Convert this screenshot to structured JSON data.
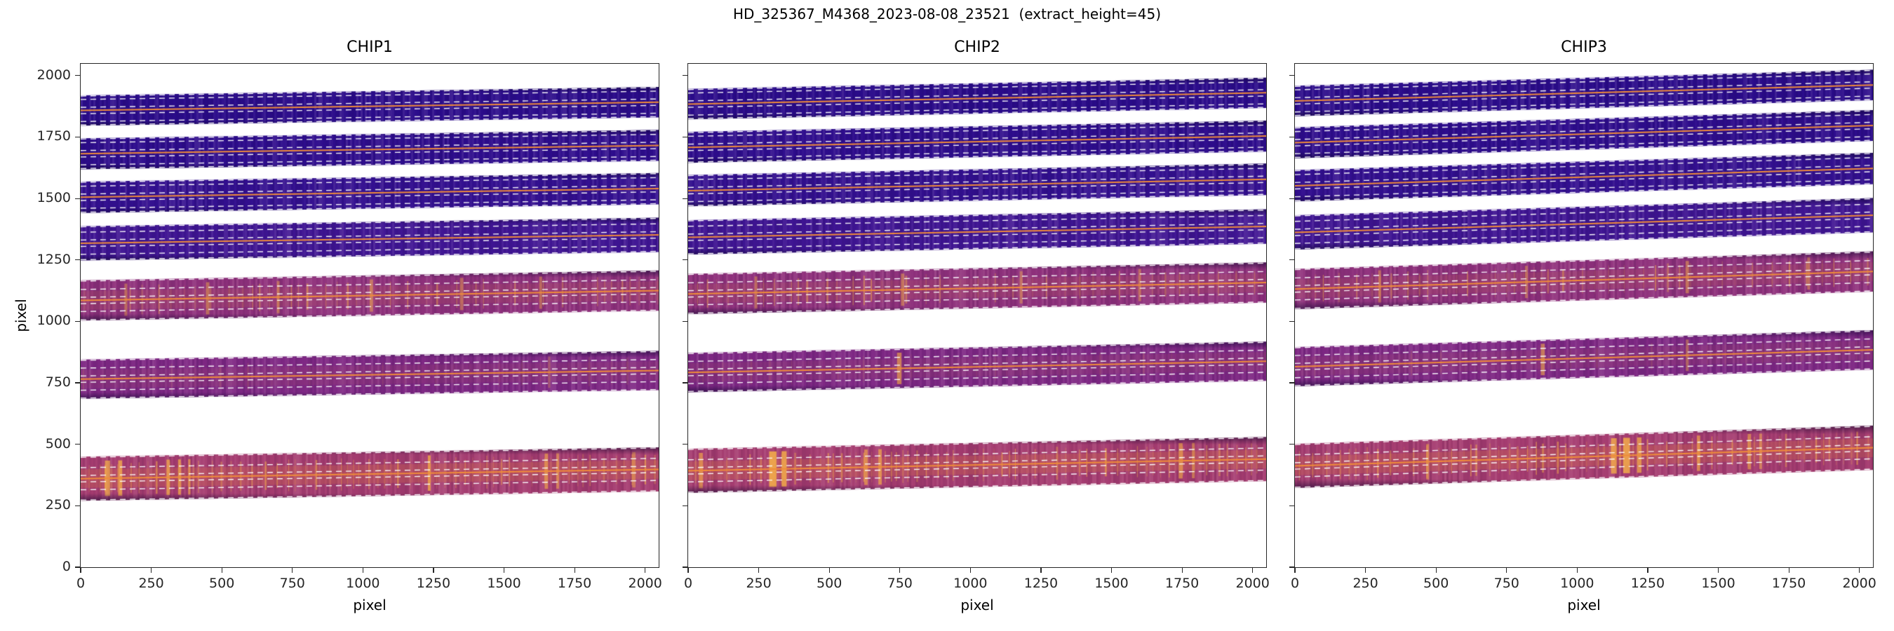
{
  "chart_data": {
    "type": "heatmap",
    "title": "HD_325367_M4368_2023-08-08_23521  (extract_height=45)",
    "extract_height": 45,
    "xlabel": "pixel",
    "ylabel": "pixel",
    "xlim": [
      0,
      2048
    ],
    "ylim": [
      0,
      2048
    ],
    "x_ticks": [
      0,
      250,
      500,
      750,
      1000,
      1250,
      1500,
      1750,
      2000
    ],
    "y_ticks": [
      0,
      250,
      500,
      750,
      1000,
      1250,
      1500,
      1750,
      2000
    ],
    "legend": "none",
    "grid": false,
    "style": {
      "trace_color": "#f08c3a",
      "dash_color": "#ffffff",
      "bright_line_color": "#f2ab4a",
      "tint_color": "#d2694a",
      "spine_color": "#262626",
      "background": "#ffffff"
    },
    "panels": [
      {
        "title": "CHIP1",
        "orders": [
          {
            "y_left": 360,
            "y_right": 398,
            "half_height": 90,
            "color": "#a53c70",
            "line_spacing": 34,
            "line_alpha": 0.6,
            "tint_alpha": 0.32,
            "bright_lines": [
              [
                95,
                18,
                0.75
              ],
              [
                140,
                14,
                0.8
              ],
              [
                310,
                12,
                0.75
              ],
              [
                350,
                10,
                0.75
              ],
              [
                385,
                8,
                0.65
              ],
              [
                1235,
                10,
                0.8
              ],
              [
                1650,
                12,
                0.65
              ],
              [
                1690,
                10,
                0.55
              ],
              [
                1960,
                12,
                0.5
              ]
            ]
          },
          {
            "y_left": 765,
            "y_right": 800,
            "half_height": 80,
            "color": "#7e2884",
            "line_spacing": 70,
            "line_alpha": 0.14,
            "tint_alpha": 0.1,
            "bright_lines": [
              [
                1660,
                8,
                0.3
              ]
            ]
          },
          {
            "y_left": 1085,
            "y_right": 1125,
            "half_height": 82,
            "color": "#8f317c",
            "line_spacing": 48,
            "line_alpha": 0.5,
            "tint_alpha": 0.15,
            "bright_lines": [
              [
                160,
                10,
                0.45
              ],
              [
                450,
                12,
                0.5
              ],
              [
                700,
                10,
                0.45
              ],
              [
                1030,
                12,
                0.5
              ],
              [
                1350,
                12,
                0.45
              ],
              [
                1630,
                10,
                0.45
              ]
            ]
          },
          {
            "y_left": 1318,
            "y_right": 1352,
            "half_height": 70,
            "color": "#3f1593",
            "line_spacing": 0,
            "line_alpha": 0,
            "tint_alpha": 0,
            "bright_lines": []
          },
          {
            "y_left": 1505,
            "y_right": 1540,
            "half_height": 64,
            "color": "#331090",
            "line_spacing": 0,
            "line_alpha": 0,
            "tint_alpha": 0,
            "bright_lines": []
          },
          {
            "y_left": 1682,
            "y_right": 1716,
            "half_height": 63,
            "color": "#2e0d8d",
            "line_spacing": 0,
            "line_alpha": 0,
            "tint_alpha": 0,
            "bright_lines": []
          },
          {
            "y_left": 1858,
            "y_right": 1892,
            "half_height": 62,
            "color": "#2b0c8b",
            "line_spacing": 0,
            "line_alpha": 0,
            "tint_alpha": 0,
            "bright_lines": []
          }
        ]
      },
      {
        "title": "CHIP2",
        "orders": [
          {
            "y_left": 392,
            "y_right": 440,
            "half_height": 90,
            "color": "#a53c70",
            "line_spacing": 34,
            "line_alpha": 0.6,
            "tint_alpha": 0.32,
            "bright_lines": [
              [
                45,
                14,
                0.65
              ],
              [
                300,
                26,
                0.9
              ],
              [
                340,
                18,
                0.85
              ],
              [
                630,
                12,
                0.65
              ],
              [
                680,
                12,
                0.7
              ],
              [
                1745,
                14,
                0.65
              ],
              [
                1790,
                10,
                0.55
              ]
            ]
          },
          {
            "y_left": 792,
            "y_right": 838,
            "half_height": 80,
            "color": "#7e2884",
            "line_spacing": 70,
            "line_alpha": 0.14,
            "tint_alpha": 0.1,
            "bright_lines": [
              [
                748,
                16,
                0.65
              ]
            ]
          },
          {
            "y_left": 1112,
            "y_right": 1158,
            "half_height": 82,
            "color": "#8f317c",
            "line_spacing": 48,
            "line_alpha": 0.5,
            "tint_alpha": 0.15,
            "bright_lines": [
              [
                240,
                10,
                0.45
              ],
              [
                760,
                12,
                0.5
              ],
              [
                1180,
                10,
                0.45
              ],
              [
                1600,
                10,
                0.45
              ]
            ]
          },
          {
            "y_left": 1342,
            "y_right": 1386,
            "half_height": 70,
            "color": "#3f1593",
            "line_spacing": 0,
            "line_alpha": 0,
            "tint_alpha": 0,
            "bright_lines": []
          },
          {
            "y_left": 1532,
            "y_right": 1578,
            "half_height": 64,
            "color": "#331090",
            "line_spacing": 0,
            "line_alpha": 0,
            "tint_alpha": 0,
            "bright_lines": []
          },
          {
            "y_left": 1708,
            "y_right": 1754,
            "half_height": 63,
            "color": "#2e0d8d",
            "line_spacing": 0,
            "line_alpha": 0,
            "tint_alpha": 0,
            "bright_lines": []
          },
          {
            "y_left": 1884,
            "y_right": 1930,
            "half_height": 62,
            "color": "#2b0c8b",
            "line_spacing": 0,
            "line_alpha": 0,
            "tint_alpha": 0,
            "bright_lines": []
          }
        ]
      },
      {
        "title": "CHIP3",
        "orders": [
          {
            "y_left": 412,
            "y_right": 486,
            "half_height": 90,
            "color": "#a53c70",
            "line_spacing": 36,
            "line_alpha": 0.6,
            "tint_alpha": 0.32,
            "bright_lines": [
              [
                470,
                10,
                0.55
              ],
              [
                1130,
                20,
                0.8
              ],
              [
                1175,
                24,
                0.85
              ],
              [
                1220,
                16,
                0.75
              ],
              [
                1430,
                12,
                0.65
              ],
              [
                1610,
                12,
                0.6
              ],
              [
                1650,
                10,
                0.55
              ]
            ]
          },
          {
            "y_left": 816,
            "y_right": 884,
            "half_height": 80,
            "color": "#7e2884",
            "line_spacing": 70,
            "line_alpha": 0.14,
            "tint_alpha": 0.1,
            "bright_lines": [
              [
                878,
                14,
                0.6
              ],
              [
                1390,
                10,
                0.45
              ]
            ]
          },
          {
            "y_left": 1132,
            "y_right": 1203,
            "half_height": 82,
            "color": "#8f317c",
            "line_spacing": 48,
            "line_alpha": 0.5,
            "tint_alpha": 0.15,
            "bright_lines": [
              [
                300,
                10,
                0.45
              ],
              [
                820,
                10,
                0.45
              ],
              [
                1390,
                12,
                0.5
              ],
              [
                1820,
                10,
                0.45
              ]
            ]
          },
          {
            "y_left": 1362,
            "y_right": 1432,
            "half_height": 70,
            "color": "#3f1593",
            "line_spacing": 0,
            "line_alpha": 0,
            "tint_alpha": 0,
            "bright_lines": []
          },
          {
            "y_left": 1552,
            "y_right": 1622,
            "half_height": 64,
            "color": "#331090",
            "line_spacing": 0,
            "line_alpha": 0,
            "tint_alpha": 0,
            "bright_lines": []
          },
          {
            "y_left": 1727,
            "y_right": 1797,
            "half_height": 63,
            "color": "#2e0d8d",
            "line_spacing": 0,
            "line_alpha": 0,
            "tint_alpha": 0,
            "bright_lines": []
          },
          {
            "y_left": 1897,
            "y_right": 1962,
            "half_height": 62,
            "color": "#2b0c8b",
            "line_spacing": 0,
            "line_alpha": 0,
            "tint_alpha": 0,
            "bright_lines": []
          }
        ]
      }
    ]
  }
}
